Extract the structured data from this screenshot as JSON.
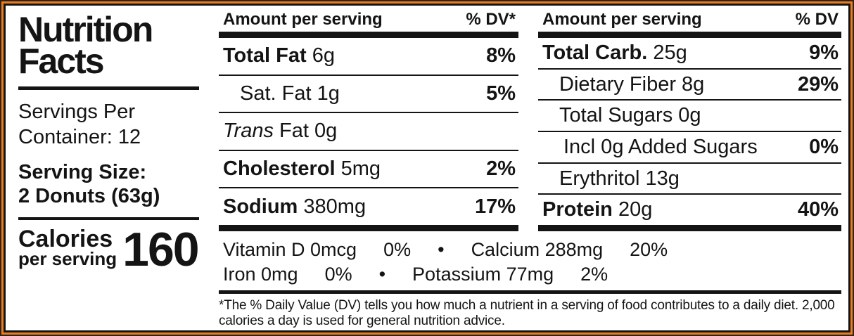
{
  "colors": {
    "outer_border_dark": "#36220f",
    "outer_border_orange": "#e87f23",
    "inner_border_black": "#141414",
    "background": "#ffffff",
    "text": "#141414"
  },
  "left_panel": {
    "title": "Nutrition Facts",
    "servings_per_container": "Servings Per Container: 12",
    "serving_size_label": "Serving Size:",
    "serving_size_value": "2 Donuts (63g)",
    "calories_label": "Calories",
    "calories_sublabel": "per serving",
    "calories_value": "160"
  },
  "fat_panel": {
    "header": {
      "amount_label": "Amount per serving",
      "dv_label": "% DV*"
    },
    "rows": [
      {
        "name": "Total Fat",
        "amount": "6g",
        "dv": "8%",
        "style": "major"
      },
      {
        "name": "Sat. Fat",
        "amount": "1g",
        "dv": "5%",
        "style": "sub"
      },
      {
        "name": "Trans Fat",
        "amount": "0g",
        "dv": "",
        "style": "sub-italic"
      },
      {
        "name": "Cholesterol",
        "amount": "5mg",
        "dv": "2%",
        "style": "major"
      },
      {
        "name": "Sodium",
        "amount": "380mg",
        "dv": "17%",
        "style": "major"
      }
    ]
  },
  "carb_panel": {
    "header": {
      "amount_label": "Amount per serving",
      "dv_label": "% DV"
    },
    "rows": [
      {
        "name": "Total Carb.",
        "amount": "25g",
        "dv": "9%",
        "style": "major"
      },
      {
        "name": "Dietary Fiber",
        "amount": "8g",
        "dv": "29%",
        "style": "sub"
      },
      {
        "name": "Total Sugars",
        "amount": "0g",
        "dv": "",
        "style": "sub"
      },
      {
        "name": "Incl 0g Added Sugars",
        "amount": "",
        "dv": "0%",
        "style": "sub2"
      },
      {
        "name": "Erythritol",
        "amount": "13g",
        "dv": "",
        "style": "sub"
      },
      {
        "name": "Protein",
        "amount": "20g",
        "dv": "40%",
        "style": "major"
      }
    ]
  },
  "micronutrients": {
    "separator": "•",
    "lines": [
      [
        {
          "name": "Vitamin D",
          "amount": "0mcg",
          "dv": "0%"
        },
        {
          "name": "Calcium",
          "amount": "288mg",
          "dv": "20%"
        }
      ],
      [
        {
          "name": "Iron",
          "amount": "0mg",
          "dv": "0%"
        },
        {
          "name": "Potassium",
          "amount": "77mg",
          "dv": "2%"
        }
      ]
    ]
  },
  "footnote": {
    "text": "*The % Daily Value (DV) tells you how much a nutrient in a serving of food contributes to a daily diet. 2,000 calories a day is used for general nutrition advice."
  }
}
